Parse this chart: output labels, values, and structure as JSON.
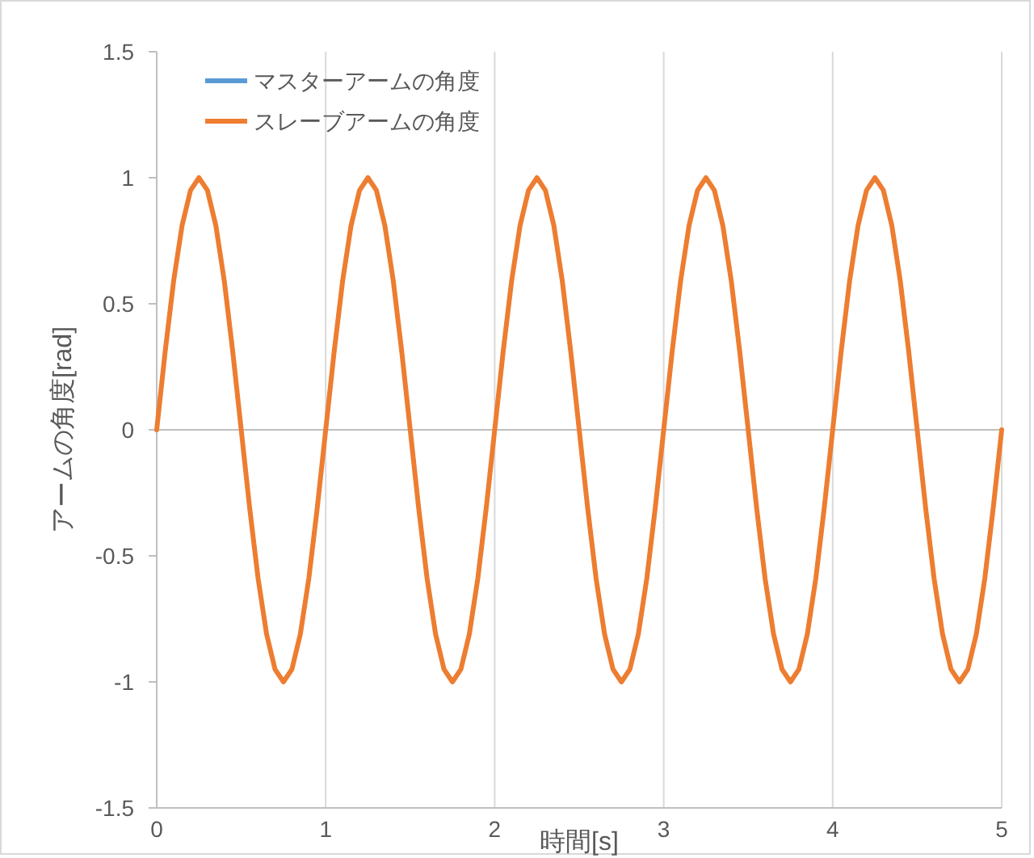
{
  "chart_data": {
    "type": "line",
    "xlabel": "時間[s]",
    "ylabel": "アームの角度[rad]",
    "x": [
      0,
      0.05,
      0.1,
      0.15,
      0.2,
      0.25,
      0.3,
      0.35,
      0.4,
      0.45,
      0.5,
      0.55,
      0.6,
      0.65,
      0.7,
      0.75,
      0.8,
      0.85,
      0.9,
      0.95,
      1,
      1.05,
      1.1,
      1.15,
      1.2,
      1.25,
      1.3,
      1.35,
      1.4,
      1.45,
      1.5,
      1.55,
      1.6,
      1.65,
      1.7,
      1.75,
      1.8,
      1.85,
      1.9,
      1.95,
      2,
      2.05,
      2.1,
      2.15,
      2.2,
      2.25,
      2.3,
      2.35,
      2.4,
      2.45,
      2.5,
      2.55,
      2.6,
      2.65,
      2.7,
      2.75,
      2.8,
      2.85,
      2.9,
      2.95,
      3,
      3.05,
      3.1,
      3.15,
      3.2,
      3.25,
      3.3,
      3.35,
      3.4,
      3.45,
      3.5,
      3.55,
      3.6,
      3.65,
      3.7,
      3.75,
      3.8,
      3.85,
      3.9,
      3.95,
      4,
      4.05,
      4.1,
      4.15,
      4.2,
      4.25,
      4.3,
      4.35,
      4.4,
      4.45,
      4.5,
      4.55,
      4.6,
      4.65,
      4.7,
      4.75,
      4.8,
      4.85,
      4.9,
      4.95,
      5
    ],
    "series": [
      {
        "name": "マスターアームの角度",
        "color": "#5b9bd5",
        "values": [
          null,
          null,
          null,
          null,
          null,
          null,
          null,
          null,
          null,
          null,
          null,
          null,
          null,
          null,
          null,
          null,
          null,
          null,
          null,
          null,
          null,
          null,
          null,
          null,
          null,
          null,
          null,
          null,
          null,
          null,
          null,
          null,
          null,
          null,
          null,
          null,
          null,
          null,
          null,
          null,
          null,
          null,
          null,
          null,
          null,
          null,
          null,
          null,
          null,
          null,
          null,
          null,
          null,
          null,
          null,
          null,
          null,
          null,
          null,
          null,
          null,
          null,
          null,
          null,
          null,
          null,
          null,
          null,
          null,
          null,
          null,
          null,
          null,
          null,
          null,
          null,
          null,
          null,
          null,
          null,
          null,
          null,
          null,
          null,
          null,
          null,
          null,
          null,
          null,
          null,
          null,
          null,
          null,
          null,
          null,
          null,
          null,
          null,
          null,
          null,
          null
        ]
      },
      {
        "name": "スレーブアームの角度",
        "color": "#ed7d31",
        "values": [
          0,
          0.31,
          0.59,
          0.81,
          0.95,
          1,
          0.95,
          0.81,
          0.59,
          0.31,
          0,
          -0.31,
          -0.59,
          -0.81,
          -0.95,
          -1,
          -0.95,
          -0.81,
          -0.59,
          -0.31,
          0,
          0.31,
          0.59,
          0.81,
          0.95,
          1,
          0.95,
          0.81,
          0.59,
          0.31,
          0,
          -0.31,
          -0.59,
          -0.81,
          -0.95,
          -1,
          -0.95,
          -0.81,
          -0.59,
          -0.31,
          0,
          0.31,
          0.59,
          0.81,
          0.95,
          1,
          0.95,
          0.81,
          0.59,
          0.31,
          0,
          -0.31,
          -0.59,
          -0.81,
          -0.95,
          -1,
          -0.95,
          -0.81,
          -0.59,
          -0.31,
          0,
          0.31,
          0.59,
          0.81,
          0.95,
          1,
          0.95,
          0.81,
          0.59,
          0.31,
          0,
          -0.31,
          -0.59,
          -0.81,
          -0.95,
          -1,
          -0.95,
          -0.81,
          -0.59,
          -0.31,
          0,
          0.31,
          0.59,
          0.81,
          0.95,
          1,
          0.95,
          0.81,
          0.59,
          0.31,
          0,
          -0.31,
          -0.59,
          -0.81,
          -0.95,
          -1,
          -0.95,
          -0.81,
          -0.59,
          -0.31,
          0
        ]
      }
    ],
    "xlim": [
      0,
      5
    ],
    "xticks": [
      0,
      1,
      2,
      3,
      4,
      5
    ],
    "ylim": [
      -1.5,
      1.5
    ],
    "yticks": [
      1.5,
      1,
      0.5,
      0,
      -0.5,
      -1,
      -1.5
    ],
    "grid": "x",
    "legend": "top left",
    "marker": "none",
    "line_style": "solid"
  }
}
